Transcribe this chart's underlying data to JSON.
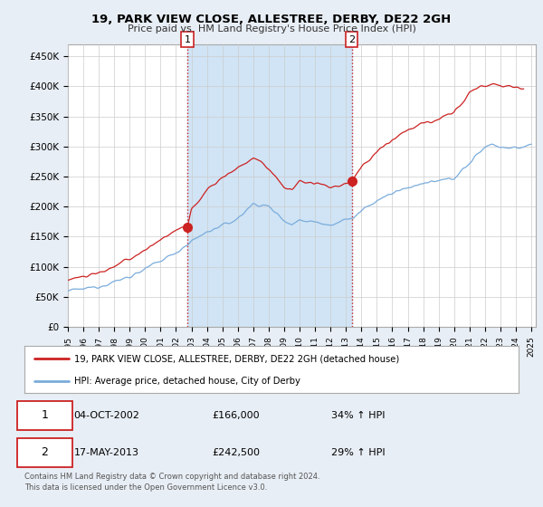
{
  "title": "19, PARK VIEW CLOSE, ALLESTREE, DERBY, DE22 2GH",
  "subtitle": "Price paid vs. HM Land Registry's House Price Index (HPI)",
  "xlim_start": 1995.0,
  "xlim_end": 2025.3,
  "ylim_min": 0,
  "ylim_max": 470000,
  "yticks": [
    0,
    50000,
    100000,
    150000,
    200000,
    250000,
    300000,
    350000,
    400000,
    450000
  ],
  "ytick_labels": [
    "£0",
    "£50K",
    "£100K",
    "£150K",
    "£200K",
    "£250K",
    "£300K",
    "£350K",
    "£400K",
    "£450K"
  ],
  "xtick_years": [
    1995,
    1996,
    1997,
    1998,
    1999,
    2000,
    2001,
    2002,
    2003,
    2004,
    2005,
    2006,
    2007,
    2008,
    2009,
    2010,
    2011,
    2012,
    2013,
    2014,
    2015,
    2016,
    2017,
    2018,
    2019,
    2020,
    2021,
    2022,
    2023,
    2024,
    2025
  ],
  "hpi_color": "#7aacdb",
  "price_color": "#cc2222",
  "purchase_1": {
    "year": 2002.75,
    "value": 166000,
    "label": "1"
  },
  "purchase_2": {
    "year": 2013.37,
    "value": 242500,
    "label": "2"
  },
  "shade_color": "#d0e4f5",
  "legend_label_red": "19, PARK VIEW CLOSE, ALLESTREE, DERBY, DE22 2GH (detached house)",
  "legend_label_blue": "HPI: Average price, detached house, City of Derby",
  "annotation_1_date": "04-OCT-2002",
  "annotation_1_price": "£166,000",
  "annotation_1_hpi": "34% ↑ HPI",
  "annotation_2_date": "17-MAY-2013",
  "annotation_2_price": "£242,500",
  "annotation_2_hpi": "29% ↑ HPI",
  "footer": "Contains HM Land Registry data © Crown copyright and database right 2024.\nThis data is licensed under the Open Government Licence v3.0.",
  "bg_color": "#e8eef5",
  "plot_bg": "#ffffff",
  "grid_color": "#cccccc"
}
